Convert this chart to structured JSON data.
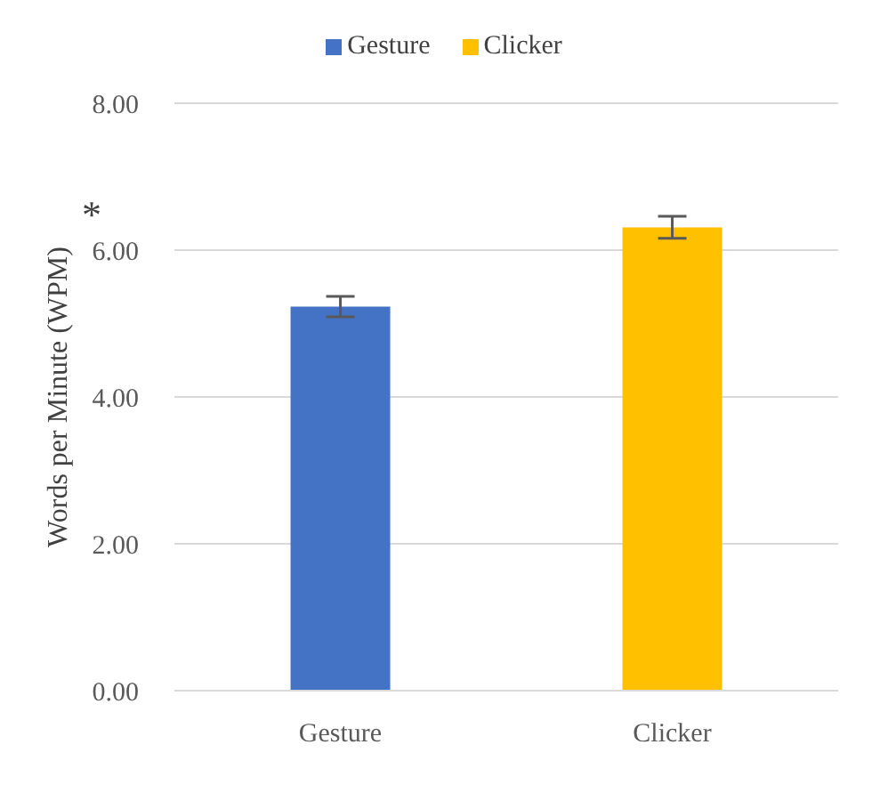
{
  "chart_data": {
    "type": "bar",
    "categories": [
      "Gesture",
      "Clicker"
    ],
    "series": [
      {
        "name": "Gesture",
        "color": "#4472c4",
        "values": [
          5.23,
          null
        ],
        "errors": [
          0.14,
          null
        ]
      },
      {
        "name": "Clicker",
        "color": "#ffc000",
        "values": [
          null,
          6.31
        ],
        "errors": [
          null,
          0.15
        ]
      }
    ],
    "ylabel": "Words per Minute (WPM)",
    "annotations": [
      "*"
    ],
    "ylim": [
      0,
      8
    ],
    "yticks": [
      {
        "value": 0,
        "label": "0.00"
      },
      {
        "value": 2,
        "label": "2.00"
      },
      {
        "value": 4,
        "label": "4.00"
      },
      {
        "value": 6,
        "label": "6.00"
      },
      {
        "value": 8,
        "label": "8.00"
      }
    ],
    "grid": "y",
    "legend": "top"
  }
}
